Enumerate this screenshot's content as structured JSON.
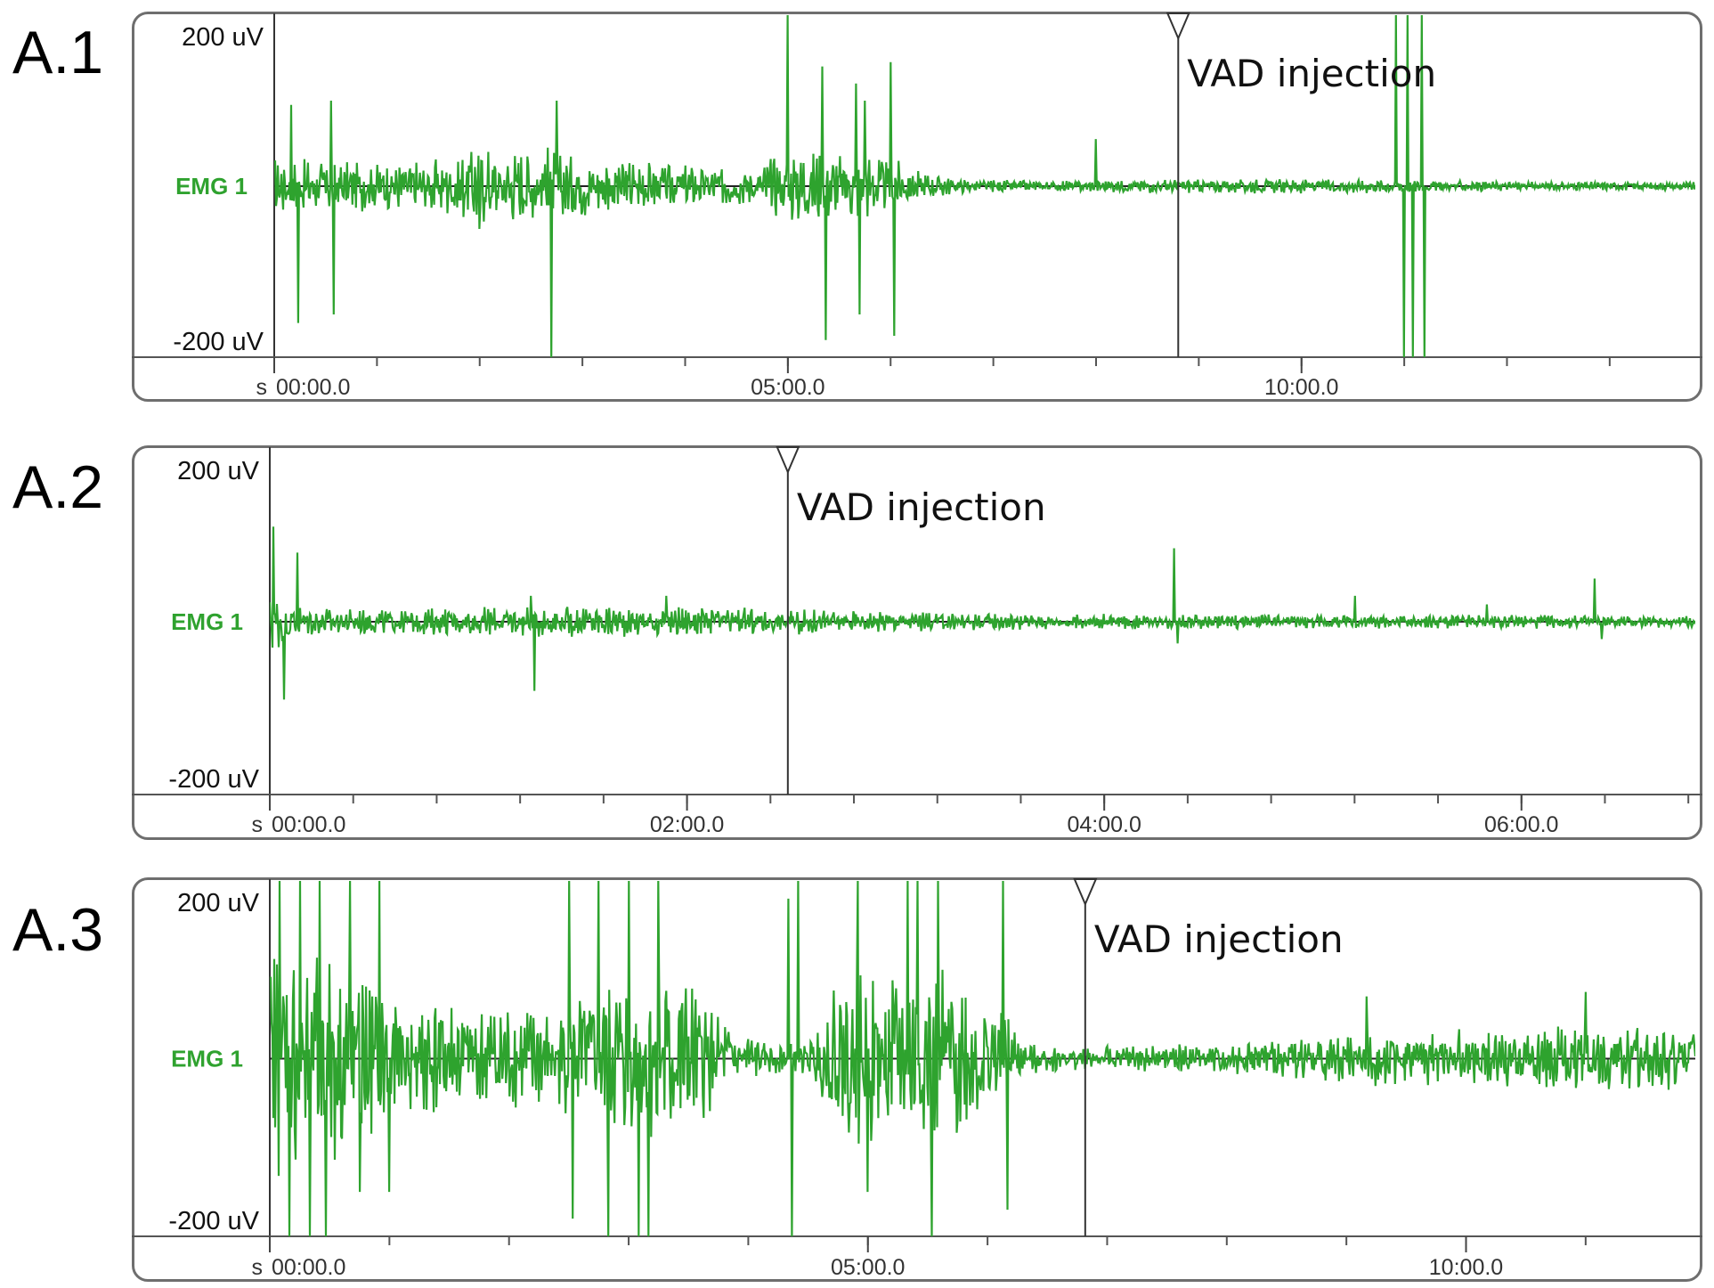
{
  "chart_data": [
    {
      "type": "line",
      "panel_label": "A.1",
      "channel": "EMG 1",
      "y_top_label": "200 uV",
      "y_bottom_label": "-200 uV",
      "ylim": [
        -200,
        200
      ],
      "x_unit": "s",
      "xlim": [
        0,
        830
      ],
      "x_ticks": [
        {
          "value": 0,
          "label": "00:00.0"
        },
        {
          "value": 300,
          "label": "05:00.0"
        },
        {
          "value": 600,
          "label": "10:00.0"
        }
      ],
      "marker": {
        "x": 528,
        "label": "VAD injection"
      },
      "series": [
        {
          "color": "#2ea32e",
          "activity": [
            [
              0,
              40
            ],
            [
              40,
              35
            ],
            [
              80,
              35
            ],
            [
              120,
              55
            ],
            [
              160,
              50
            ],
            [
              200,
              40
            ],
            [
              240,
              30
            ],
            [
              280,
              25
            ],
            [
              300,
              55
            ],
            [
              330,
              50
            ],
            [
              360,
              40
            ],
            [
              380,
              20
            ],
            [
              400,
              10
            ],
            [
              440,
              8
            ],
            [
              480,
              8
            ],
            [
              520,
              10
            ],
            [
              560,
              10
            ],
            [
              600,
              10
            ],
            [
              640,
              10
            ],
            [
              680,
              8
            ],
            [
              720,
              7
            ],
            [
              760,
              6
            ],
            [
              830,
              6
            ]
          ],
          "spikes": [
            [
              10,
              95
            ],
            [
              14,
              -160
            ],
            [
              33,
              100
            ],
            [
              35,
              -150
            ],
            [
              115,
              40
            ],
            [
              120,
              -50
            ],
            [
              160,
              45
            ],
            [
              162,
              -200
            ],
            [
              165,
              100
            ],
            [
              300,
              200
            ],
            [
              320,
              140
            ],
            [
              322,
              -180
            ],
            [
              340,
              120
            ],
            [
              342,
              -150
            ],
            [
              345,
              100
            ],
            [
              360,
              145
            ],
            [
              362,
              -175
            ],
            [
              480,
              55
            ],
            [
              655,
              200
            ],
            [
              660,
              -200
            ],
            [
              662,
              200
            ],
            [
              665,
              -200
            ],
            [
              670,
              200
            ],
            [
              672,
              -200
            ]
          ]
        }
      ]
    },
    {
      "type": "line",
      "panel_label": "A.2",
      "channel": "EMG 1",
      "y_top_label": "200 uV",
      "y_bottom_label": "-200 uV",
      "ylim": [
        -200,
        200
      ],
      "x_unit": "s",
      "xlim": [
        0,
        410
      ],
      "x_ticks": [
        {
          "value": 0,
          "label": "00:00.0"
        },
        {
          "value": 120,
          "label": "02:00.0"
        },
        {
          "value": 240,
          "label": "04:00.0"
        },
        {
          "value": 360,
          "label": "06:00.0"
        }
      ],
      "marker": {
        "x": 149,
        "label": "VAD injection"
      },
      "series": [
        {
          "color": "#2ea32e",
          "activity": [
            [
              0,
              45
            ],
            [
              10,
              20
            ],
            [
              40,
              18
            ],
            [
              80,
              22
            ],
            [
              120,
              22
            ],
            [
              150,
              18
            ],
            [
              200,
              12
            ],
            [
              260,
              10
            ],
            [
              300,
              10
            ],
            [
              350,
              10
            ],
            [
              410,
              8
            ]
          ],
          "spikes": [
            [
              1,
              110
            ],
            [
              4,
              -90
            ],
            [
              8,
              80
            ],
            [
              75,
              30
            ],
            [
              76,
              -80
            ],
            [
              114,
              30
            ],
            [
              260,
              85
            ],
            [
              261,
              -25
            ],
            [
              312,
              30
            ],
            [
              350,
              20
            ],
            [
              381,
              50
            ],
            [
              383,
              -20
            ]
          ]
        }
      ]
    },
    {
      "type": "line",
      "panel_label": "A.3",
      "channel": "EMG 1",
      "y_top_label": "200 uV",
      "y_bottom_label": "-200 uV",
      "ylim": [
        -200,
        200
      ],
      "x_unit": "s",
      "xlim": [
        0,
        715
      ],
      "x_ticks": [
        {
          "value": 0,
          "label": "00:00.0"
        },
        {
          "value": 300,
          "label": "05:00.0"
        },
        {
          "value": 600,
          "label": "10:00.0"
        }
      ],
      "marker": {
        "x": 409,
        "label": "VAD injection"
      },
      "series": [
        {
          "color": "#2ea32e",
          "activity": [
            [
              0,
              160
            ],
            [
              30,
              150
            ],
            [
              60,
              90
            ],
            [
              100,
              80
            ],
            [
              140,
              70
            ],
            [
              170,
              110
            ],
            [
              200,
              130
            ],
            [
              230,
              50
            ],
            [
              250,
              20
            ],
            [
              270,
              20
            ],
            [
              290,
              130
            ],
            [
              320,
              110
            ],
            [
              340,
              120
            ],
            [
              360,
              90
            ],
            [
              380,
              20
            ],
            [
              400,
              18
            ],
            [
              450,
              18
            ],
            [
              500,
              25
            ],
            [
              540,
              35
            ],
            [
              580,
              40
            ],
            [
              620,
              40
            ],
            [
              660,
              45
            ],
            [
              700,
              45
            ],
            [
              715,
              45
            ]
          ],
          "spikes": [
            [
              5,
              200
            ],
            [
              10,
              -200
            ],
            [
              15,
              200
            ],
            [
              20,
              -200
            ],
            [
              25,
              200
            ],
            [
              28,
              -200
            ],
            [
              40,
              200
            ],
            [
              45,
              -150
            ],
            [
              55,
              200
            ],
            [
              60,
              -150
            ],
            [
              150,
              200
            ],
            [
              152,
              -180
            ],
            [
              165,
              200
            ],
            [
              170,
              -200
            ],
            [
              180,
              200
            ],
            [
              185,
              -200
            ],
            [
              190,
              -200
            ],
            [
              195,
              200
            ],
            [
              260,
              180
            ],
            [
              262,
              -200
            ],
            [
              265,
              200
            ],
            [
              295,
              200
            ],
            [
              300,
              -150
            ],
            [
              320,
              200
            ],
            [
              325,
              200
            ],
            [
              332,
              -200
            ],
            [
              335,
              200
            ],
            [
              368,
              200
            ],
            [
              370,
              -170
            ],
            [
              550,
              70
            ],
            [
              660,
              75
            ]
          ]
        }
      ]
    }
  ]
}
